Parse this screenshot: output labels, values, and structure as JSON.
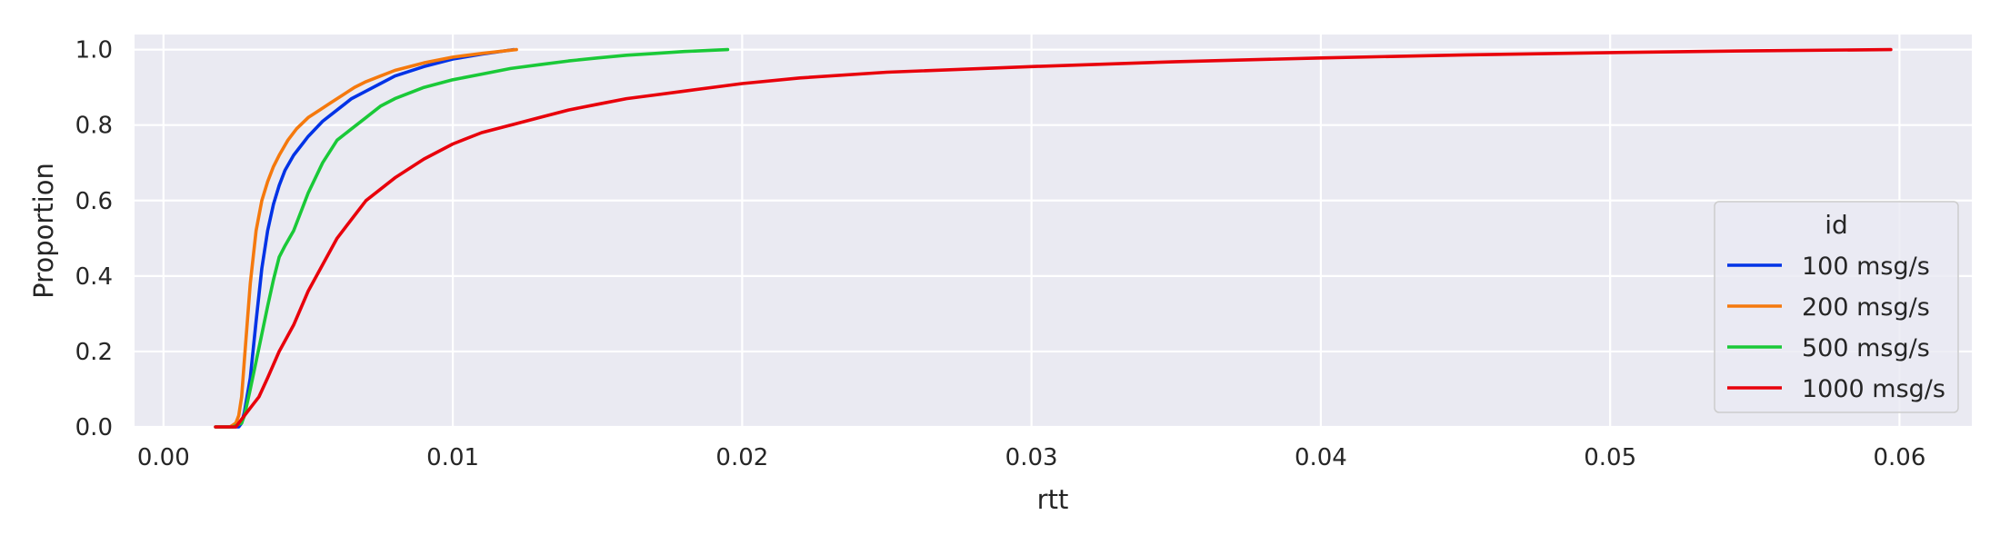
{
  "chart_data": {
    "type": "line",
    "title": "",
    "xlabel": "rtt",
    "ylabel": "Proportion",
    "xlim": [
      -0.001,
      0.0625
    ],
    "ylim": [
      0,
      1.04
    ],
    "x_ticks": [
      0.0,
      0.01,
      0.02,
      0.03,
      0.04,
      0.05,
      0.06
    ],
    "x_tick_labels": [
      "0.00",
      "0.01",
      "0.02",
      "0.03",
      "0.04",
      "0.05",
      "0.06"
    ],
    "y_ticks": [
      0.0,
      0.2,
      0.4,
      0.6,
      0.8,
      1.0
    ],
    "y_tick_labels": [
      "0.0",
      "0.2",
      "0.4",
      "0.6",
      "0.8",
      "1.0"
    ],
    "grid": true,
    "background_color": "#eaeaf2",
    "legend": {
      "title": "id",
      "placement": "lower-right"
    },
    "series": [
      {
        "name": "100 msg/s",
        "color": "#0033e6",
        "x": [
          0.0018,
          0.0023,
          0.0026,
          0.0027,
          0.0028,
          0.003,
          0.0032,
          0.0034,
          0.0036,
          0.0038,
          0.004,
          0.0042,
          0.0045,
          0.0048,
          0.005,
          0.0055,
          0.006,
          0.0065,
          0.007,
          0.0075,
          0.008,
          0.009,
          0.01,
          0.011,
          0.0121
        ],
        "y": [
          0.0,
          0.0,
          0.0,
          0.01,
          0.04,
          0.13,
          0.28,
          0.42,
          0.52,
          0.59,
          0.64,
          0.68,
          0.72,
          0.75,
          0.77,
          0.81,
          0.84,
          0.87,
          0.89,
          0.91,
          0.93,
          0.955,
          0.975,
          0.988,
          1.0
        ]
      },
      {
        "name": "200 msg/s",
        "color": "#f5790d",
        "x": [
          0.0018,
          0.0023,
          0.0025,
          0.0026,
          0.0027,
          0.0028,
          0.003,
          0.0032,
          0.0034,
          0.0036,
          0.0038,
          0.004,
          0.0043,
          0.0046,
          0.005,
          0.0054,
          0.0058,
          0.0062,
          0.0066,
          0.007,
          0.0075,
          0.008,
          0.009,
          0.01,
          0.011,
          0.0122
        ],
        "y": [
          0.0,
          0.0,
          0.01,
          0.03,
          0.08,
          0.18,
          0.38,
          0.52,
          0.6,
          0.65,
          0.69,
          0.72,
          0.76,
          0.79,
          0.82,
          0.84,
          0.86,
          0.88,
          0.9,
          0.915,
          0.93,
          0.945,
          0.965,
          0.98,
          0.99,
          1.0
        ]
      },
      {
        "name": "500 msg/s",
        "color": "#1ac938",
        "x": [
          0.0018,
          0.0024,
          0.0027,
          0.0028,
          0.003,
          0.0033,
          0.0036,
          0.0038,
          0.004,
          0.0042,
          0.0045,
          0.0048,
          0.005,
          0.0055,
          0.006,
          0.0065,
          0.007,
          0.0075,
          0.008,
          0.009,
          0.01,
          0.011,
          0.012,
          0.013,
          0.014,
          0.015,
          0.016,
          0.017,
          0.018,
          0.0195
        ],
        "y": [
          0.0,
          0.0,
          0.01,
          0.03,
          0.1,
          0.21,
          0.32,
          0.39,
          0.45,
          0.48,
          0.52,
          0.58,
          0.62,
          0.7,
          0.76,
          0.79,
          0.82,
          0.85,
          0.87,
          0.9,
          0.92,
          0.935,
          0.95,
          0.96,
          0.97,
          0.978,
          0.985,
          0.99,
          0.995,
          1.0
        ]
      },
      {
        "name": "1000 msg/s",
        "color": "#e8000b",
        "x": [
          0.0018,
          0.0025,
          0.0028,
          0.003,
          0.0033,
          0.0036,
          0.004,
          0.0045,
          0.005,
          0.0055,
          0.006,
          0.0065,
          0.007,
          0.0075,
          0.008,
          0.009,
          0.01,
          0.011,
          0.012,
          0.013,
          0.014,
          0.015,
          0.016,
          0.017,
          0.018,
          0.02,
          0.022,
          0.025,
          0.03,
          0.035,
          0.04,
          0.045,
          0.05,
          0.055,
          0.0597
        ],
        "y": [
          0.0,
          0.0,
          0.03,
          0.05,
          0.08,
          0.13,
          0.2,
          0.27,
          0.36,
          0.43,
          0.5,
          0.55,
          0.6,
          0.63,
          0.66,
          0.71,
          0.75,
          0.78,
          0.8,
          0.82,
          0.84,
          0.855,
          0.87,
          0.88,
          0.89,
          0.91,
          0.925,
          0.94,
          0.955,
          0.968,
          0.978,
          0.986,
          0.992,
          0.997,
          1.0
        ]
      }
    ]
  }
}
